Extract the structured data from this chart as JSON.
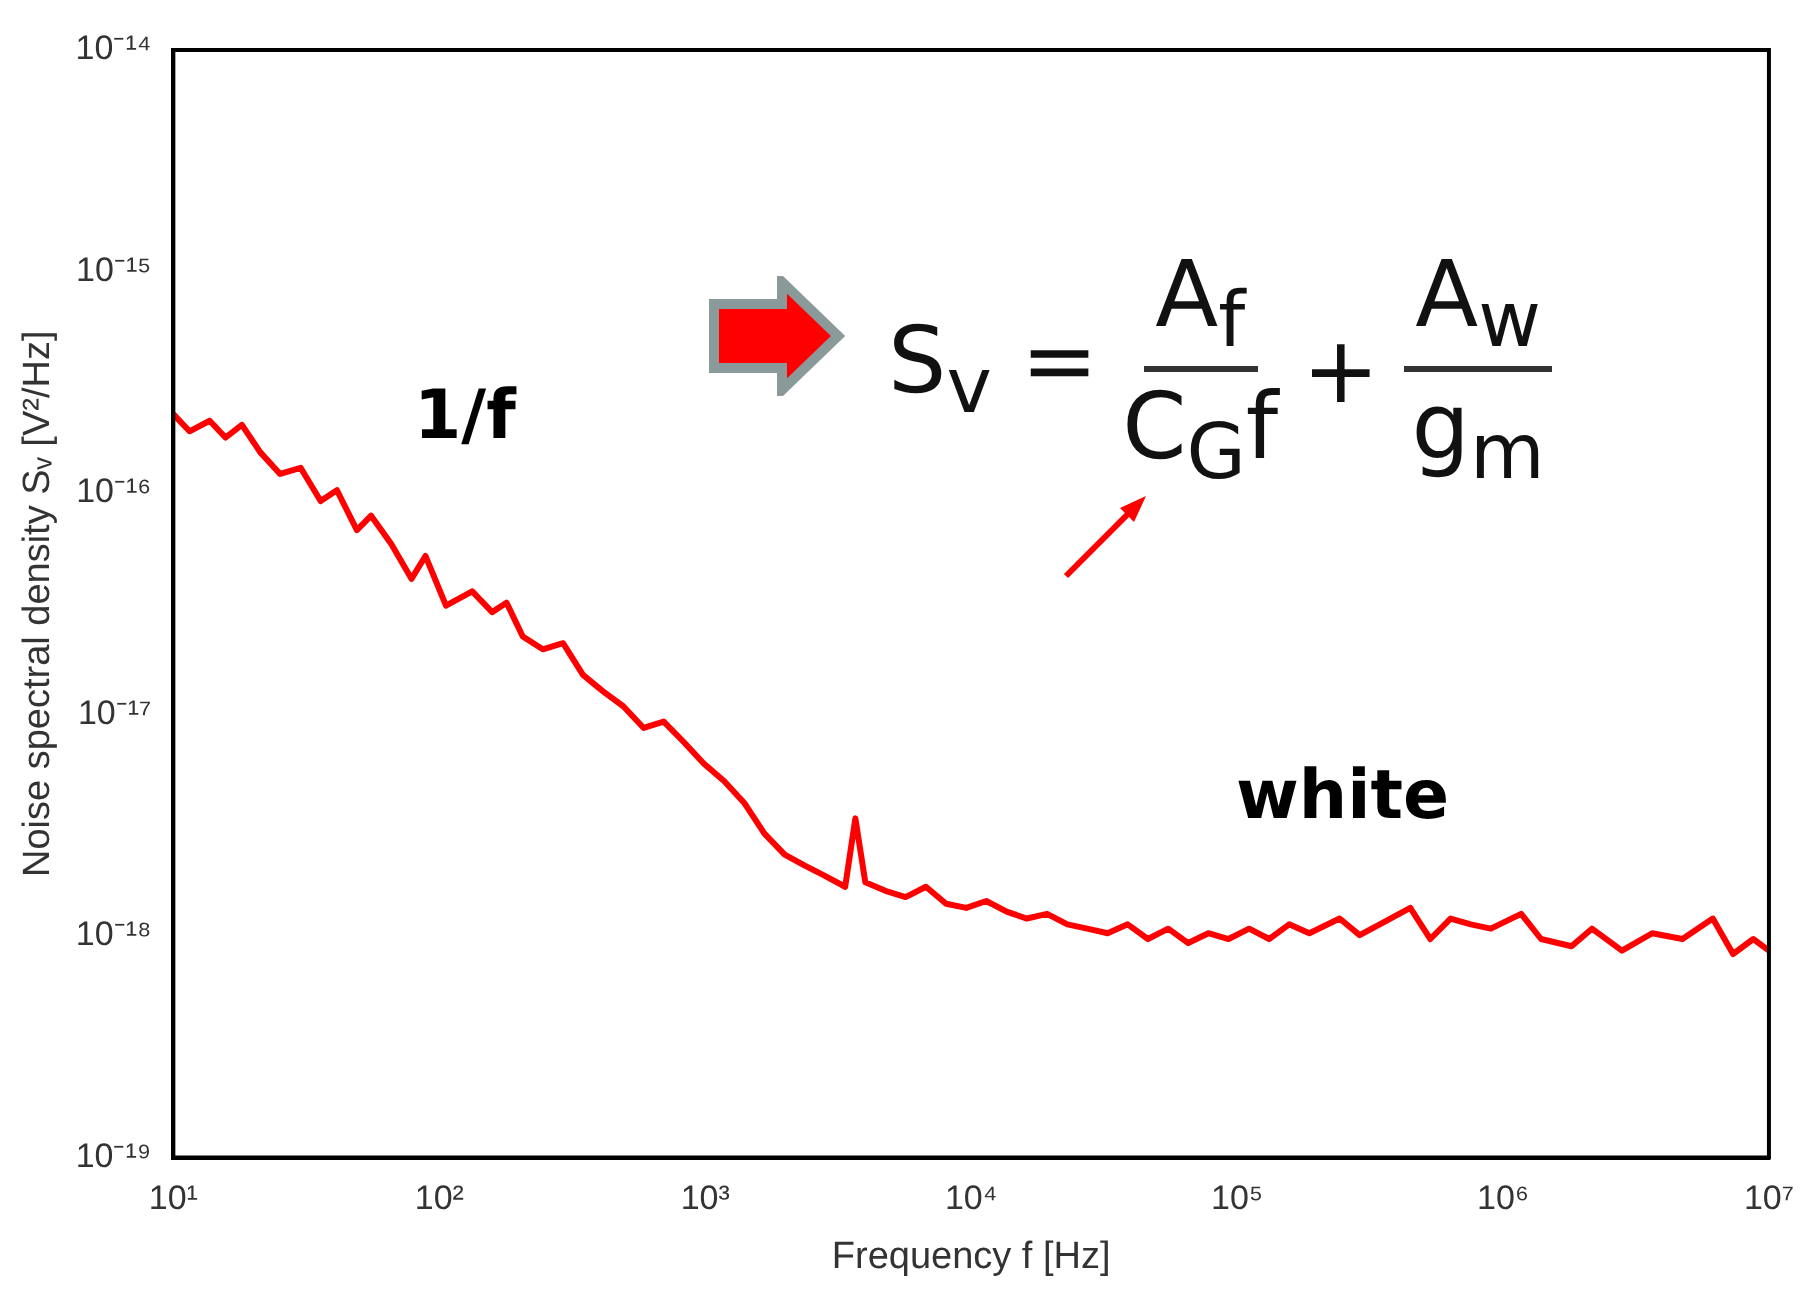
{
  "chart_data": {
    "type": "line",
    "xlabel": "Frequency f [Hz]",
    "ylabel": "Noise spectral density Sᵥ [V²/Hz]",
    "log": "xy",
    "grid": false,
    "legend": false,
    "marker": "none",
    "line_style": "solid",
    "xlim": [
      10,
      10000000
    ],
    "ylim": [
      1e-19,
      1e-14
    ],
    "xticks": [
      {
        "value": 10,
        "label": "10¹"
      },
      {
        "value": 100,
        "label": "10²"
      },
      {
        "value": 1000,
        "label": "10³"
      },
      {
        "value": 10000,
        "label": "10⁴"
      },
      {
        "value": 100000,
        "label": "10⁵"
      },
      {
        "value": 1000000,
        "label": "10⁶"
      },
      {
        "value": 10000000,
        "label": "10⁷"
      }
    ],
    "yticks": [
      {
        "value": 1e-19,
        "label": "10⁻¹⁹"
      },
      {
        "value": 1e-18,
        "label": "10⁻¹⁸"
      },
      {
        "value": 1e-17,
        "label": "10⁻¹⁷"
      },
      {
        "value": 1e-16,
        "label": "10⁻¹⁶"
      },
      {
        "value": 1e-15,
        "label": "10⁻¹⁵"
      },
      {
        "value": 1e-14,
        "label": "10⁻¹⁴"
      }
    ],
    "annotations": [
      "1/f",
      "white",
      "S$_{v}$ =",
      "A$_{f}$",
      "C$_{G}$f",
      "+",
      "A$_{w}$",
      "g$_{m}$"
    ],
    "series": [
      {
        "color": "#ff0000",
        "x": [
          10,
          11.5,
          13.7,
          15.7,
          18.1,
          21.2,
          25.2,
          30.1,
          35.8,
          41.2,
          49,
          55.4,
          65.9,
          78.6,
          88.7,
          106,
          133,
          158,
          179,
          206,
          245,
          292,
          347,
          414,
          492,
          587,
          698,
          832,
          989,
          1180,
          1400,
          1670,
          1990,
          2370,
          2820,
          3360,
          3670,
          4000,
          4760,
          5670,
          6760,
          8050,
          9590,
          11400,
          13600,
          16200,
          19300,
          23000,
          27300,
          32600,
          38800,
          46200,
          55100,
          65500,
          78000,
          92900,
          111000,
          132000,
          157000,
          187000,
          243000,
          289000,
          344000,
          448000,
          533000,
          635000,
          757000,
          900000,
          1170000,
          1390000,
          1810000,
          2160000,
          2800000,
          3640000,
          4730000,
          6150000,
          7330000,
          8730000,
          10000000
        ],
        "values": [
          2.27e-16,
          1.9e-16,
          2.12e-16,
          1.78e-16,
          2.03e-16,
          1.53e-16,
          1.22e-16,
          1.3e-16,
          9.2e-17,
          1.03e-16,
          6.8e-17,
          7.9e-17,
          5.9e-17,
          4.1e-17,
          5.2e-17,
          3.1e-17,
          3.6e-17,
          2.9e-17,
          3.2e-17,
          2.25e-17,
          1.97e-17,
          2.1e-17,
          1.51e-17,
          1.27e-17,
          1.09e-17,
          8.7e-18,
          9.3e-18,
          7.5e-18,
          6e-18,
          5e-18,
          4e-18,
          2.9e-18,
          2.33e-18,
          2.08e-18,
          1.87e-18,
          1.67e-18,
          3.4e-18,
          1.75e-18,
          1.6e-18,
          1.5e-18,
          1.67e-18,
          1.4e-18,
          1.34e-18,
          1.44e-18,
          1.29e-18,
          1.2e-18,
          1.26e-18,
          1.13e-18,
          1.08e-18,
          1.03e-18,
          1.13e-18,
          9.7e-19,
          1.08e-18,
          9.3e-19,
          1.03e-18,
          9.7e-19,
          1.08e-18,
          9.7e-19,
          1.13e-18,
          1.03e-18,
          1.2e-18,
          1.01e-18,
          1.13e-18,
          1.34e-18,
          9.7e-19,
          1.2e-18,
          1.13e-18,
          1.08e-18,
          1.26e-18,
          9.7e-19,
          9e-19,
          1.08e-18,
          8.6e-19,
          1.03e-18,
          9.7e-19,
          1.2e-18,
          8.3e-19,
          9.7e-19,
          8.6e-19
        ]
      }
    ]
  }
}
